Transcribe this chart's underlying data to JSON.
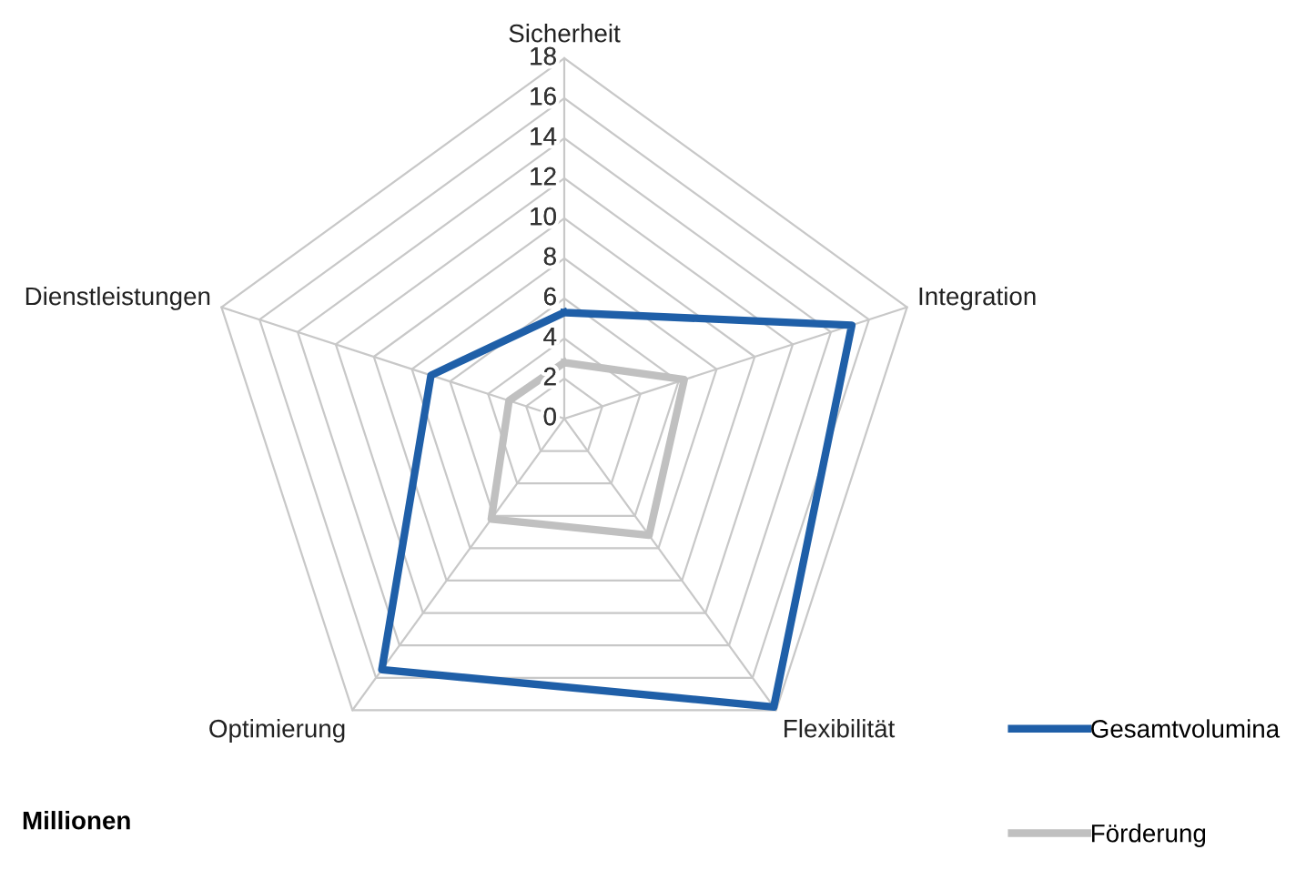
{
  "chart_data": {
    "type": "radar",
    "categories": [
      "Sicherheit",
      "Integration",
      "Flexibilität",
      "Optimierung",
      "Dienstleistungen"
    ],
    "series": [
      {
        "name": "Gesamtvolumina",
        "color": "#1f5fa8",
        "values": [
          5.3,
          15.1,
          17.8,
          15.5,
          7.0
        ]
      },
      {
        "name": "Förderung",
        "color": "#c0c0c0",
        "values": [
          2.8,
          6.3,
          7.2,
          6.2,
          2.9
        ]
      }
    ],
    "ylim": [
      0,
      18
    ],
    "yticks": [
      0,
      2,
      4,
      6,
      8,
      10,
      12,
      14,
      16,
      18
    ],
    "grid": true,
    "legend": "bottom right",
    "marker": "none",
    "line_style": "solid",
    "annotations": [
      "Millionen"
    ]
  }
}
